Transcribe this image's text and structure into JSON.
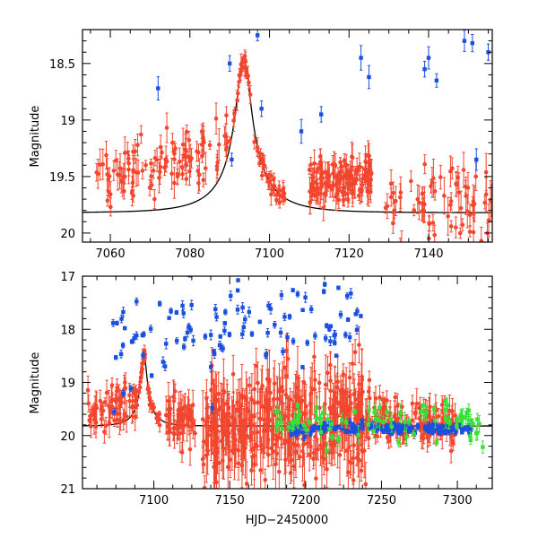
{
  "colors": {
    "red": "#f2462e",
    "blue": "#1a4fe0",
    "green": "#39e03a",
    "model": "#000000"
  },
  "chart_data": [
    {
      "type": "scatter",
      "name": "top-panel",
      "xlabel": "",
      "ylabel": "Magnitude",
      "xlim": [
        7053,
        7156
      ],
      "ylim": [
        20.08,
        18.2
      ],
      "xticks": [
        7060,
        7080,
        7100,
        7120,
        7140
      ],
      "yticks": [
        18.5,
        19,
        19.5,
        20
      ],
      "ytick_labels": [
        "18.5",
        "19",
        "19.5",
        "20"
      ],
      "model": {
        "baseline": 19.82,
        "peak_x": 7093.5,
        "peak_mag": 18.45,
        "width": 4.0,
        "u_min": 0.15
      },
      "series": [
        {
          "name": "red",
          "color_key": "red",
          "segments": [
            {
              "x0": 7056,
              "x1": 7090,
              "count": 110,
              "y_start": 19.55,
              "y_end": 19.25,
              "scatter": 0.22,
              "err": 0.12,
              "follow_model": false
            },
            {
              "x0": 7090,
              "x1": 7104,
              "count": 60,
              "scatter": 0.07,
              "err": 0.08,
              "follow_model": true
            },
            {
              "x0": 7110,
              "x1": 7126,
              "count": 140,
              "y_start": 19.55,
              "y_end": 19.5,
              "scatter": 0.15,
              "err": 0.12,
              "follow_model": false
            },
            {
              "x0": 7128,
              "x1": 7156,
              "count": 70,
              "y_start": 19.7,
              "y_end": 19.75,
              "scatter": 0.3,
              "err": 0.15,
              "follow_model": false
            }
          ]
        },
        {
          "name": "blue",
          "color_key": "blue",
          "points": [
            [
              7072,
              18.72
            ],
            [
              7090,
              18.5
            ],
            [
              7090.5,
              19.35
            ],
            [
              7097,
              18.25
            ],
            [
              7108,
              19.1
            ],
            [
              7113,
              18.95
            ],
            [
              7123,
              18.45
            ],
            [
              7125,
              18.62
            ],
            [
              7139,
              18.55
            ],
            [
              7140,
              18.45
            ],
            [
              7142,
              18.65
            ],
            [
              7149,
              18.3
            ],
            [
              7151,
              18.32
            ],
            [
              7155,
              18.4
            ],
            [
              7098,
              18.9
            ],
            [
              7152,
              19.35
            ]
          ]
        }
      ]
    },
    {
      "type": "scatter",
      "name": "bottom-panel",
      "xlabel": "HJD−2450000",
      "ylabel": "Magnitude",
      "xlim": [
        7053,
        7323
      ],
      "ylim": [
        21,
        17
      ],
      "xticks": [
        7100,
        7150,
        7200,
        7250,
        7300
      ],
      "yticks": [
        17,
        18,
        19,
        20,
        21
      ],
      "ytick_labels": [
        "17",
        "18",
        "19",
        "20",
        "21"
      ],
      "model": {
        "baseline": 19.82,
        "peak_x": 7093.5,
        "peak_mag": 18.45,
        "width": 4.0,
        "u_min": 0.15
      },
      "series": [
        {
          "name": "red",
          "color_key": "red",
          "segments": [
            {
              "x0": 7056,
              "x1": 7090,
              "count": 70,
              "y_start": 19.6,
              "y_end": 19.3,
              "scatter": 0.35,
              "err": 0.25,
              "follow_model": false
            },
            {
              "x0": 7090,
              "x1": 7104,
              "count": 35,
              "scatter": 0.1,
              "err": 0.12,
              "follow_model": true
            },
            {
              "x0": 7108,
              "x1": 7128,
              "count": 60,
              "y_start": 19.7,
              "y_end": 19.6,
              "scatter": 0.4,
              "err": 0.3,
              "follow_model": false
            },
            {
              "x0": 7132,
              "x1": 7240,
              "count": 420,
              "y_start": 19.9,
              "y_end": 19.7,
              "scatter": 0.85,
              "err": 0.5,
              "follow_model": false
            },
            {
              "x0": 7240,
              "x1": 7300,
              "count": 150,
              "y_start": 19.65,
              "y_end": 19.8,
              "scatter": 0.35,
              "err": 0.25,
              "follow_model": false
            }
          ]
        },
        {
          "name": "blue",
          "color_key": "blue",
          "segments": [
            {
              "x0": 7070,
              "x1": 7240,
              "count": 110,
              "y_start": 18.1,
              "y_end": 17.8,
              "scatter": 0.75,
              "err": 0.08,
              "follow_model": false
            },
            {
              "x0": 7190,
              "x1": 7310,
              "count": 180,
              "y_start": 19.88,
              "y_end": 19.86,
              "scatter": 0.08,
              "err": 0.06,
              "follow_model": false
            }
          ]
        },
        {
          "name": "green",
          "color_key": "green",
          "segments": [
            {
              "x0": 7180,
              "x1": 7318,
              "count": 90,
              "y_start": 19.7,
              "y_end": 19.75,
              "scatter": 0.35,
              "err": 0.15,
              "follow_model": false
            }
          ]
        }
      ]
    }
  ]
}
